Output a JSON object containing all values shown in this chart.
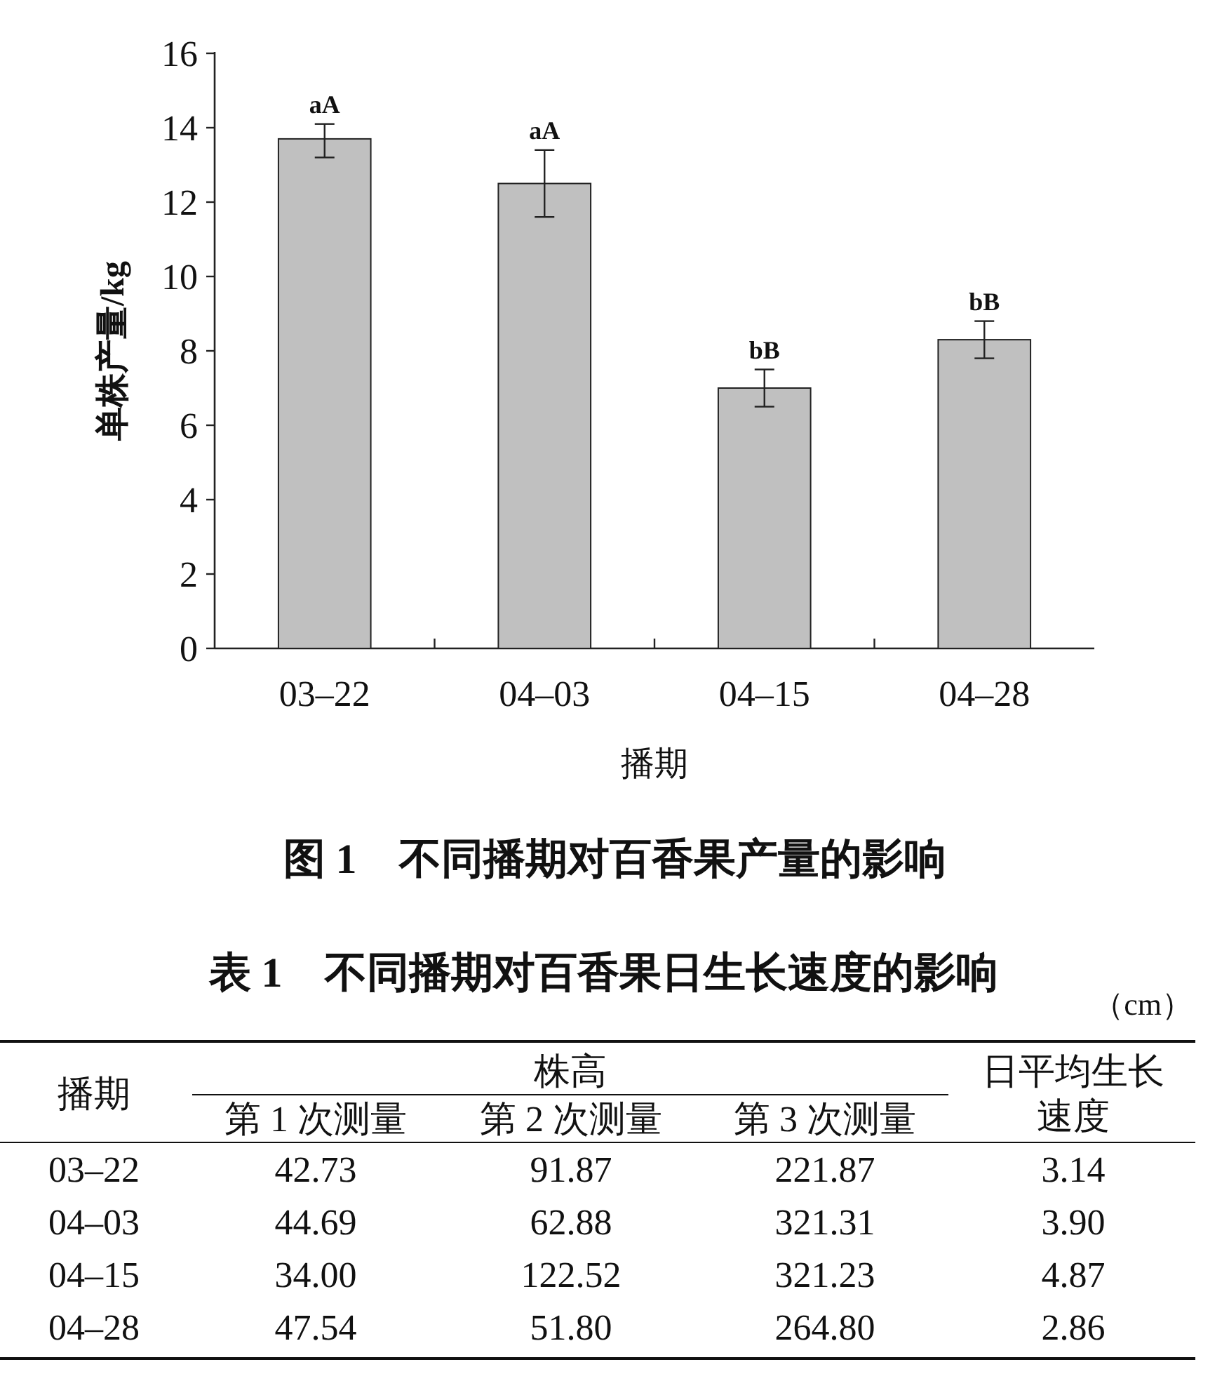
{
  "chart_data": [
    {
      "type": "bar",
      "title": "图 1　不同播期对百香果产量的影响",
      "xlabel": "播期",
      "ylabel": "单株产量/kg",
      "categories": [
        "03–22",
        "04–03",
        "04–15",
        "04–28"
      ],
      "values": [
        13.7,
        12.5,
        7.0,
        8.3
      ],
      "errors": [
        [
          13.2,
          14.1
        ],
        [
          11.6,
          13.4
        ],
        [
          6.5,
          7.5
        ],
        [
          7.8,
          8.8
        ]
      ],
      "color": "#c0c0c0",
      "ylim": [
        0,
        16
      ],
      "yticks": [
        0,
        2,
        4,
        6,
        8,
        10,
        12,
        14,
        16
      ],
      "annotations": [
        {
          "text": "aA",
          "x": "03–22",
          "y": 14.1
        },
        {
          "text": "aA",
          "x": "04–03",
          "y": 13.4
        },
        {
          "text": "bB",
          "x": "04–15",
          "y": 7.5
        },
        {
          "text": "bB",
          "x": "04–28",
          "y": 8.8
        }
      ]
    },
    {
      "type": "other",
      "title": "表 1　不同播期对百香果日生长速度的影响",
      "ylabel": "播期",
      "xlabel": "株高",
      "annotations": [
        "（cm）"
      ],
      "categories": [
        "第 1 次测量",
        "第 2 次测量",
        "第 3 次测量",
        "日平均生长速度"
      ],
      "y_categories": [
        "03–22",
        "04–03",
        "04–15",
        "04–28"
      ],
      "cell_labels": [
        [
          "42.73",
          "91.87",
          "221.87",
          "3.14"
        ],
        [
          "44.69",
          "62.88",
          "321.31",
          "3.90"
        ],
        [
          "34.00",
          "122.52",
          "321.23",
          "4.87"
        ],
        [
          "47.54",
          "51.80",
          "264.80",
          "2.86"
        ]
      ]
    }
  ]
}
